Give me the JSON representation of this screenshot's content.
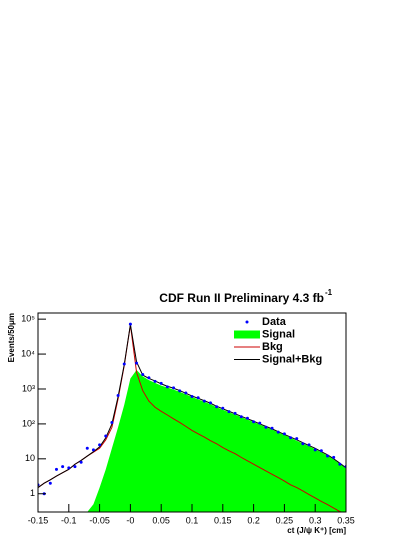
{
  "chart_data": {
    "type": "line",
    "title": "CDF Run II Preliminary 4.3 fb",
    "title_superscript": "-1",
    "x_label": "ct (J/ψ K⁺) [cm]",
    "y_label": "Events/50μm",
    "log_y": true,
    "x": [
      -0.15,
      -0.14,
      -0.13,
      -0.12,
      -0.11,
      -0.1,
      -0.09,
      -0.08,
      -0.07,
      -0.06,
      -0.05,
      -0.04,
      -0.03,
      -0.02,
      -0.01,
      0,
      0.01,
      0.02,
      0.03,
      0.04,
      0.05,
      0.06,
      0.07,
      0.08,
      0.09,
      0.1,
      0.11,
      0.12,
      0.13,
      0.14,
      0.15,
      0.16,
      0.17,
      0.18,
      0.19,
      0.2,
      0.21,
      0.22,
      0.23,
      0.24,
      0.25,
      0.26,
      0.27,
      0.28,
      0.29,
      0.3,
      0.31,
      0.32,
      0.33,
      0.34,
      0.35
    ],
    "series": [
      {
        "name": "Data",
        "color": "#0000ff",
        "style": "markers",
        "values": [
          1.8,
          1,
          2,
          5,
          6,
          5.5,
          6,
          8,
          20,
          18,
          25,
          45,
          110,
          650,
          5200,
          72000,
          5500,
          2600,
          2100,
          1650,
          1450,
          1150,
          1080,
          880,
          770,
          610,
          560,
          450,
          400,
          310,
          280,
          225,
          200,
          160,
          145,
          115,
          105,
          80,
          75,
          58,
          52,
          40,
          38,
          27,
          25,
          18,
          17,
          12,
          11,
          7,
          6
        ]
      },
      {
        "name": "Signal",
        "color": "#00ff00",
        "style": "area",
        "values": [
          null,
          null,
          null,
          null,
          null,
          null,
          null,
          null,
          0.3,
          0.5,
          1.5,
          5,
          20,
          80,
          350,
          2000,
          3500,
          2300,
          1800,
          1500,
          1250,
          1100,
          960,
          830,
          700,
          590,
          505,
          430,
          365,
          300,
          255,
          218,
          185,
          157,
          133,
          114,
          95,
          81,
          69,
          57,
          48,
          40,
          33,
          27.5,
          23,
          19,
          15.3,
          12.4,
          9.6,
          7.2,
          5.3
        ]
      },
      {
        "name": "Bkg",
        "color": "#cc0000",
        "style": "line",
        "values": [
          1.5,
          2,
          2.5,
          3.2,
          4,
          5,
          7,
          9,
          12,
          15.5,
          20,
          35,
          80,
          520,
          4650,
          68000,
          3000,
          900,
          450,
          300,
          230,
          180,
          140,
          110,
          85,
          65,
          52,
          42,
          33,
          27,
          21,
          17,
          14,
          11,
          8.8,
          7,
          5.6,
          4.5,
          3.6,
          2.9,
          2.3,
          1.8,
          1.5,
          1.2,
          0.95,
          0.76,
          0.6,
          0.49,
          0.39,
          0.31,
          0.25
        ]
      },
      {
        "name": "Signal+Bkg",
        "color": "#000000",
        "style": "line",
        "values": [
          1.5,
          2,
          2.5,
          3.2,
          4,
          5,
          7,
          9,
          12,
          16,
          22,
          40,
          100,
          600,
          5000,
          70000,
          6000,
          2500,
          2000,
          1700,
          1400,
          1200,
          1050,
          900,
          750,
          630,
          540,
          460,
          390,
          320,
          270,
          230,
          195,
          165,
          140,
          120,
          100,
          85,
          72,
          60,
          50,
          42,
          35,
          29,
          24,
          20,
          16,
          13,
          10,
          7.5,
          5.5
        ]
      }
    ],
    "xlim": [
      -0.15,
      0.35
    ],
    "ylim": [
      0.3,
      150000
    ],
    "xticks": [
      -0.15,
      -0.1,
      -0.05,
      {
        "value": 0,
        "label": "-0"
      },
      0.05,
      0.1,
      0.15,
      0.2,
      0.25,
      0.3,
      0.35
    ],
    "yticks": [
      1,
      10,
      {
        "value": 100,
        "label": "10²"
      },
      {
        "value": 1000,
        "label": "10³"
      },
      {
        "value": 10000,
        "label": "10⁴"
      },
      {
        "value": 100000,
        "label": "10⁵"
      }
    ]
  }
}
